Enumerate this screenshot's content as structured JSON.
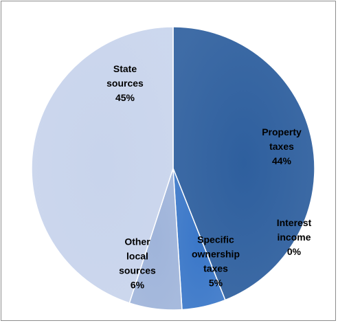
{
  "chart_data": {
    "type": "pie",
    "title": "",
    "start_angle_deg": 0,
    "direction": "clockwise",
    "slices": [
      {
        "name": "Property taxes",
        "label_lines": [
          "Property",
          "taxes"
        ],
        "value": 44,
        "value_label": "44%",
        "color": "#2e5f9e"
      },
      {
        "name": "Interest income",
        "label_lines": [
          "Interest",
          "income"
        ],
        "value": 0,
        "value_label": "0%",
        "color": "#7090c8"
      },
      {
        "name": "Specific ownership taxes",
        "label_lines": [
          "Specific",
          "ownership",
          "taxes"
        ],
        "value": 5,
        "value_label": "5%",
        "color": "#3a77c8"
      },
      {
        "name": "Other local sources",
        "label_lines": [
          "Other",
          "local",
          "sources"
        ],
        "value": 6,
        "value_label": "6%",
        "color": "#9fb4da"
      },
      {
        "name": "State sources",
        "label_lines": [
          "State",
          "sources"
        ],
        "value": 45,
        "value_label": "45%",
        "color": "#c8d4ec"
      }
    ]
  }
}
